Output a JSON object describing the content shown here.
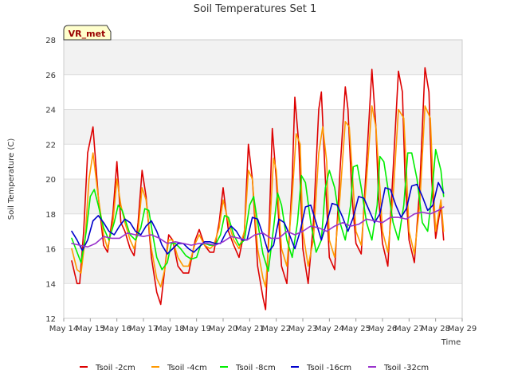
{
  "chart_data": {
    "type": "line",
    "title": "Soil Temperatures Set 1",
    "xlabel": "Time",
    "ylabel": "Soil Temperature (C)",
    "badge": "VR_met",
    "ylim": [
      12,
      28
    ],
    "yticks": [
      12,
      14,
      16,
      18,
      20,
      22,
      24,
      26,
      28
    ],
    "xlim": [
      14,
      29
    ],
    "xticks": [
      {
        "v": 14,
        "label": "May 14"
      },
      {
        "v": 15,
        "label": "May 15"
      },
      {
        "v": 16,
        "label": "May 16"
      },
      {
        "v": 17,
        "label": "May 17"
      },
      {
        "v": 18,
        "label": "May 18"
      },
      {
        "v": 19,
        "label": "May 19"
      },
      {
        "v": 20,
        "label": "May 20"
      },
      {
        "v": 21,
        "label": "May 21"
      },
      {
        "v": 22,
        "label": "May 22"
      },
      {
        "v": 23,
        "label": "May 23"
      },
      {
        "v": 24,
        "label": "May 24"
      },
      {
        "v": 25,
        "label": "May 25"
      },
      {
        "v": 26,
        "label": "May 26"
      },
      {
        "v": 27,
        "label": "May 27"
      },
      {
        "v": 28,
        "label": "May 28"
      },
      {
        "v": 29,
        "label": "May 29"
      }
    ],
    "grid": true,
    "legend_position": "bottom",
    "series": [
      {
        "name": "Tsoil -2cm",
        "color": "#dd0000",
        "x": [
          14.3,
          14.5,
          14.6,
          14.75,
          14.9,
          15.1,
          15.3,
          15.5,
          15.65,
          15.85,
          16.0,
          16.15,
          16.3,
          16.5,
          16.65,
          16.8,
          16.95,
          17.1,
          17.3,
          17.5,
          17.65,
          17.8,
          17.95,
          18.1,
          18.3,
          18.5,
          18.7,
          18.95,
          19.1,
          19.3,
          19.5,
          19.65,
          19.85,
          20.0,
          20.2,
          20.4,
          20.6,
          20.8,
          20.95,
          21.1,
          21.3,
          21.5,
          21.6,
          21.75,
          21.85,
          22.0,
          22.2,
          22.4,
          22.6,
          22.7,
          22.85,
          23.0,
          23.2,
          23.4,
          23.6,
          23.7,
          23.85,
          24.0,
          24.2,
          24.4,
          24.6,
          24.7,
          24.85,
          25.0,
          25.2,
          25.4,
          25.6,
          25.75,
          25.85,
          26.0,
          26.2,
          26.4,
          26.6,
          26.75,
          26.85,
          27.0,
          27.2,
          27.4,
          27.6,
          27.75,
          27.85,
          28.0,
          28.2,
          28.3
        ],
        "y": [
          15.3,
          14.0,
          14.0,
          17.0,
          21.5,
          23.0,
          19.0,
          16.2,
          15.8,
          18.0,
          21.0,
          17.5,
          17.0,
          16.0,
          15.6,
          17.5,
          20.5,
          19.0,
          15.5,
          13.5,
          12.8,
          14.8,
          16.8,
          16.5,
          15.0,
          14.6,
          14.6,
          16.5,
          17.1,
          16.2,
          15.8,
          15.8,
          17.5,
          19.5,
          17.0,
          16.2,
          15.5,
          17.0,
          22.0,
          20.0,
          15.0,
          13.2,
          12.5,
          18.0,
          22.9,
          20.0,
          15.0,
          14.0,
          20.0,
          24.7,
          22.0,
          16.0,
          14.0,
          17.5,
          24.0,
          25.0,
          20.0,
          15.5,
          14.8,
          20.5,
          25.3,
          24.0,
          19.0,
          16.3,
          15.7,
          21.0,
          26.3,
          23.0,
          19.0,
          16.3,
          15.0,
          20.5,
          26.2,
          25.0,
          20.0,
          16.5,
          15.2,
          19.5,
          26.4,
          25.0,
          20.0,
          16.6,
          18.5,
          16.5
        ]
      },
      {
        "name": "Tsoil -4cm",
        "color": "#ff9900",
        "x": [
          14.3,
          14.5,
          14.65,
          14.8,
          14.95,
          15.1,
          15.3,
          15.5,
          15.65,
          15.85,
          16.0,
          16.15,
          16.3,
          16.5,
          16.65,
          16.8,
          16.95,
          17.1,
          17.3,
          17.5,
          17.65,
          17.8,
          17.95,
          18.1,
          18.3,
          18.5,
          18.7,
          18.95,
          19.1,
          19.3,
          19.5,
          19.65,
          19.85,
          20.0,
          20.2,
          20.4,
          20.6,
          20.8,
          20.95,
          21.1,
          21.3,
          21.5,
          21.6,
          21.75,
          21.9,
          22.0,
          22.2,
          22.4,
          22.6,
          22.75,
          22.9,
          23.0,
          23.2,
          23.4,
          23.6,
          23.75,
          23.9,
          24.0,
          24.2,
          24.4,
          24.6,
          24.75,
          24.9,
          25.0,
          25.2,
          25.4,
          25.6,
          25.75,
          25.9,
          26.0,
          26.2,
          26.4,
          26.6,
          26.8,
          26.9,
          27.0,
          27.2,
          27.4,
          27.6,
          27.8,
          27.9,
          28.0,
          28.2,
          28.3
        ],
        "y": [
          16.0,
          14.8,
          14.6,
          16.5,
          20.0,
          21.5,
          19.0,
          16.8,
          16.0,
          17.5,
          20.0,
          18.5,
          17.5,
          16.5,
          16.0,
          17.0,
          19.5,
          18.8,
          16.0,
          14.3,
          13.8,
          14.8,
          16.5,
          16.5,
          15.5,
          15.0,
          15.0,
          16.3,
          16.8,
          16.2,
          16.0,
          16.2,
          17.2,
          18.8,
          17.5,
          16.5,
          16.0,
          17.0,
          20.5,
          20.0,
          16.0,
          14.3,
          13.8,
          17.0,
          21.2,
          20.5,
          16.0,
          15.0,
          19.0,
          22.6,
          22.0,
          17.0,
          15.0,
          16.5,
          21.5,
          23.0,
          21.0,
          16.5,
          15.5,
          19.0,
          23.3,
          23.0,
          19.5,
          17.0,
          16.2,
          20.0,
          24.2,
          23.0,
          19.5,
          17.0,
          15.8,
          19.0,
          24.0,
          23.5,
          20.5,
          17.0,
          15.7,
          18.5,
          24.2,
          23.5,
          20.0,
          17.0,
          18.8,
          17.0
        ]
      },
      {
        "name": "Tsoil -8cm",
        "color": "#00ee00",
        "x": [
          14.3,
          14.5,
          14.65,
          14.85,
          15.0,
          15.15,
          15.3,
          15.5,
          15.7,
          15.9,
          16.05,
          16.2,
          16.35,
          16.5,
          16.7,
          16.9,
          17.05,
          17.2,
          17.35,
          17.5,
          17.7,
          17.9,
          18.05,
          18.2,
          18.4,
          18.6,
          18.8,
          19.0,
          19.15,
          19.3,
          19.5,
          19.7,
          19.9,
          20.05,
          20.2,
          20.4,
          20.6,
          20.8,
          21.0,
          21.15,
          21.3,
          21.5,
          21.7,
          21.9,
          22.05,
          22.2,
          22.4,
          22.6,
          22.8,
          22.95,
          23.1,
          23.3,
          23.5,
          23.7,
          23.85,
          24.0,
          24.2,
          24.4,
          24.6,
          24.8,
          24.9,
          25.05,
          25.2,
          25.4,
          25.6,
          25.8,
          25.9,
          26.05,
          26.2,
          26.4,
          26.6,
          26.8,
          26.95,
          27.1,
          27.3,
          27.5,
          27.7,
          27.85,
          28.0,
          28.2,
          28.3
        ],
        "y": [
          16.6,
          15.8,
          15.2,
          17.0,
          19.0,
          19.4,
          18.5,
          17.2,
          16.5,
          17.5,
          18.5,
          18.2,
          17.5,
          16.8,
          16.5,
          17.2,
          18.3,
          18.2,
          16.8,
          15.5,
          14.8,
          15.2,
          16.3,
          16.3,
          16.0,
          15.6,
          15.4,
          15.5,
          16.2,
          16.3,
          16.2,
          16.2,
          16.8,
          17.9,
          17.8,
          16.8,
          16.2,
          16.5,
          18.5,
          19.0,
          17.5,
          15.7,
          14.7,
          17.2,
          19.2,
          18.5,
          16.5,
          15.5,
          17.5,
          20.2,
          19.8,
          17.5,
          15.8,
          16.5,
          19.5,
          20.5,
          19.5,
          17.5,
          16.5,
          18.5,
          20.7,
          20.8,
          19.5,
          17.5,
          16.5,
          18.5,
          21.3,
          21.0,
          19.5,
          17.5,
          16.5,
          18.5,
          21.5,
          21.5,
          20.0,
          17.5,
          17.0,
          19.0,
          21.7,
          20.5,
          19.0
        ]
      },
      {
        "name": "Tsoil -16cm",
        "color": "#0000cc",
        "x": [
          14.3,
          14.5,
          14.7,
          14.9,
          15.1,
          15.3,
          15.5,
          15.7,
          15.9,
          16.1,
          16.3,
          16.5,
          16.7,
          16.9,
          17.1,
          17.3,
          17.5,
          17.7,
          17.9,
          18.1,
          18.3,
          18.5,
          18.7,
          18.9,
          19.1,
          19.3,
          19.5,
          19.7,
          19.9,
          20.1,
          20.3,
          20.5,
          20.7,
          20.9,
          21.1,
          21.3,
          21.5,
          21.7,
          21.9,
          22.1,
          22.3,
          22.5,
          22.7,
          22.9,
          23.1,
          23.3,
          23.5,
          23.7,
          23.9,
          24.1,
          24.3,
          24.5,
          24.7,
          24.9,
          25.1,
          25.3,
          25.5,
          25.7,
          25.9,
          26.1,
          26.3,
          26.5,
          26.7,
          26.9,
          27.1,
          27.3,
          27.5,
          27.7,
          27.9,
          28.1,
          28.3
        ],
        "y": [
          17.0,
          16.5,
          15.9,
          16.5,
          17.6,
          17.9,
          17.5,
          17.0,
          16.8,
          17.3,
          17.7,
          17.5,
          17.0,
          16.8,
          17.3,
          17.6,
          17.0,
          16.2,
          15.7,
          16.0,
          16.3,
          16.3,
          16.0,
          15.8,
          16.1,
          16.4,
          16.4,
          16.3,
          16.3,
          16.9,
          17.3,
          17.0,
          16.5,
          16.5,
          17.8,
          17.7,
          16.8,
          15.8,
          16.2,
          17.7,
          17.5,
          16.8,
          16.0,
          17.0,
          18.4,
          18.5,
          17.5,
          16.5,
          17.5,
          18.6,
          18.5,
          17.8,
          17.0,
          17.8,
          19.0,
          18.9,
          18.2,
          17.5,
          18.0,
          19.5,
          19.4,
          18.5,
          17.8,
          18.3,
          19.6,
          19.7,
          19.0,
          18.2,
          18.5,
          19.8,
          19.2
        ]
      },
      {
        "name": "Tsoil -32cm",
        "color": "#9933cc",
        "x": [
          14.3,
          14.6,
          14.9,
          15.2,
          15.5,
          15.8,
          16.1,
          16.4,
          16.7,
          17.0,
          17.3,
          17.6,
          17.9,
          18.2,
          18.5,
          18.8,
          19.1,
          19.4,
          19.7,
          20.0,
          20.3,
          20.6,
          20.9,
          21.2,
          21.5,
          21.8,
          22.1,
          22.4,
          22.7,
          23.0,
          23.3,
          23.6,
          23.9,
          24.2,
          24.5,
          24.8,
          25.1,
          25.4,
          25.7,
          26.0,
          26.3,
          26.6,
          26.9,
          27.2,
          27.5,
          27.8,
          28.1,
          28.3
        ],
        "y": [
          16.3,
          16.2,
          16.1,
          16.3,
          16.7,
          16.6,
          16.6,
          16.9,
          16.8,
          16.7,
          16.8,
          16.6,
          16.3,
          16.4,
          16.3,
          16.2,
          16.3,
          16.3,
          16.2,
          16.4,
          16.7,
          16.6,
          16.5,
          16.8,
          16.9,
          16.6,
          16.6,
          17.0,
          16.8,
          17.0,
          17.3,
          17.2,
          17.0,
          17.3,
          17.5,
          17.3,
          17.4,
          17.7,
          17.6,
          17.5,
          17.8,
          17.8,
          17.7,
          18.0,
          18.1,
          18.0,
          18.2,
          18.4
        ]
      }
    ]
  }
}
